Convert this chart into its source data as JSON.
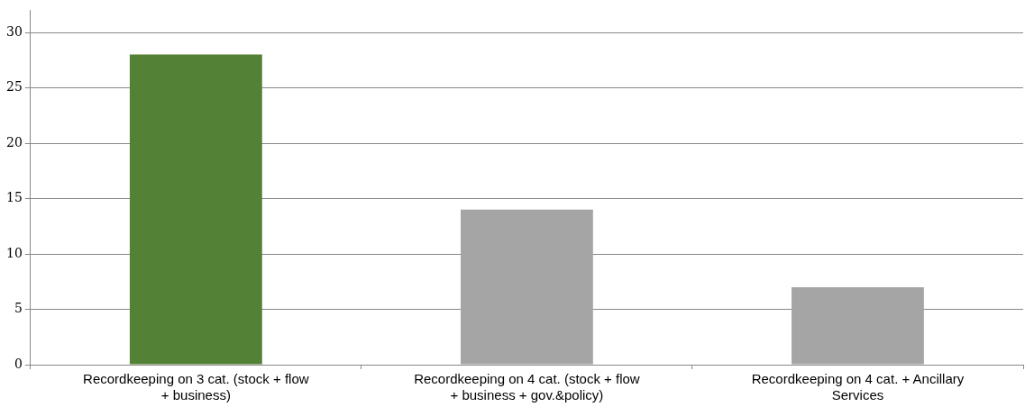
{
  "chart_data": {
    "type": "bar",
    "categories": [
      "Recordkeeping on 3 cat. (stock + flow + business)",
      "Recordkeeping on 4 cat. (stock + flow + business + gov.&policy)",
      "Recordkeeping on 4 cat. + Ancillary Services"
    ],
    "values": [
      28,
      14,
      7
    ],
    "colors": [
      "#538135",
      "#a5a5a5",
      "#a5a5a5"
    ],
    "ylim": [
      0,
      32
    ],
    "yticks": [
      0,
      5,
      10,
      15,
      20,
      25,
      30
    ],
    "grid": "y",
    "legend": false
  }
}
